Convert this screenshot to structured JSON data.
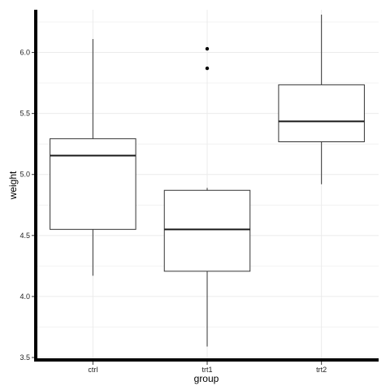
{
  "chart_data": {
    "type": "box",
    "xlabel": "group",
    "ylabel": "weight",
    "categories": [
      "ctrl",
      "trt1",
      "trt2"
    ],
    "ylim": [
      3.48,
      6.35
    ],
    "yticks": [
      3.5,
      4.0,
      4.5,
      5.0,
      5.5,
      6.0
    ],
    "ytick_labels": [
      "3.5",
      "4.0",
      "4.5",
      "5.0",
      "5.5",
      "6.0"
    ],
    "grid": true,
    "boxes": [
      {
        "group": "ctrl",
        "min": 4.17,
        "q1": 4.55,
        "median": 5.155,
        "q3": 5.293,
        "max": 6.11,
        "outliers": []
      },
      {
        "group": "trt1",
        "min": 3.59,
        "q1": 4.207,
        "median": 4.55,
        "q3": 4.87,
        "max": 4.89,
        "outliers": [
          5.87,
          6.03
        ]
      },
      {
        "group": "trt2",
        "min": 4.92,
        "q1": 5.268,
        "median": 5.435,
        "q3": 5.735,
        "max": 6.31,
        "outliers": []
      }
    ],
    "colors": {
      "box_fill": "#ffffff",
      "box_stroke": "#333333",
      "median": "#1a1a1a",
      "grid": "#ebebeb",
      "axis": "#000000"
    }
  }
}
